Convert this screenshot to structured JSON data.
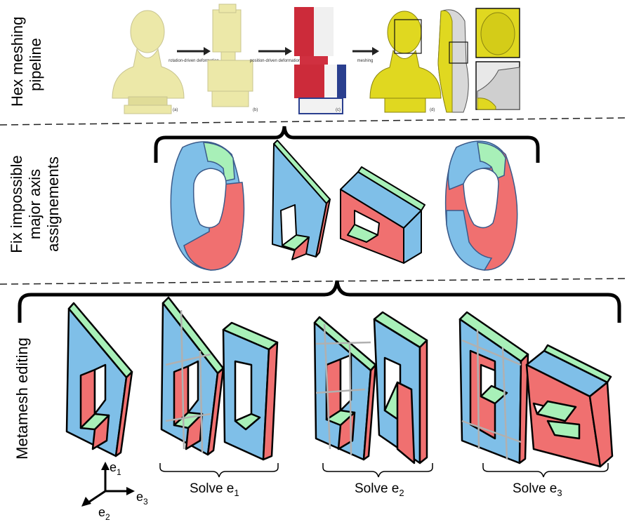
{
  "row_labels": {
    "row1_line1": "Hex meshing",
    "row1_line2": "pipeline",
    "row2_line1": "Fix impossible",
    "row2_line2": "major axis",
    "row2_line3": "assignements",
    "row3": "Metamesh editing"
  },
  "pipeline": {
    "arrow1": "rotation-driven deformation",
    "arrow2": "position-driven deformation",
    "arrow3": "meshing",
    "tag_a": "(a)",
    "tag_b": "(b)",
    "tag_c": "(c)",
    "tag_d": "(d)"
  },
  "axes": {
    "e1": "e",
    "e1_sub": "1",
    "e2": "e",
    "e2_sub": "2",
    "e3": "e",
    "e3_sub": "3"
  },
  "solve_labels": {
    "s1": "Solve e",
    "s1_sub": "1",
    "s2": "Solve e",
    "s2_sub": "2",
    "s3": "Solve e",
    "s3_sub": "3"
  },
  "colors": {
    "blue": "#7fbfe8",
    "red": "#f07070",
    "green": "#a8f0b8",
    "model": "#ece8a8",
    "mesh_yellow": "#e0d820",
    "outline": "#000000"
  }
}
